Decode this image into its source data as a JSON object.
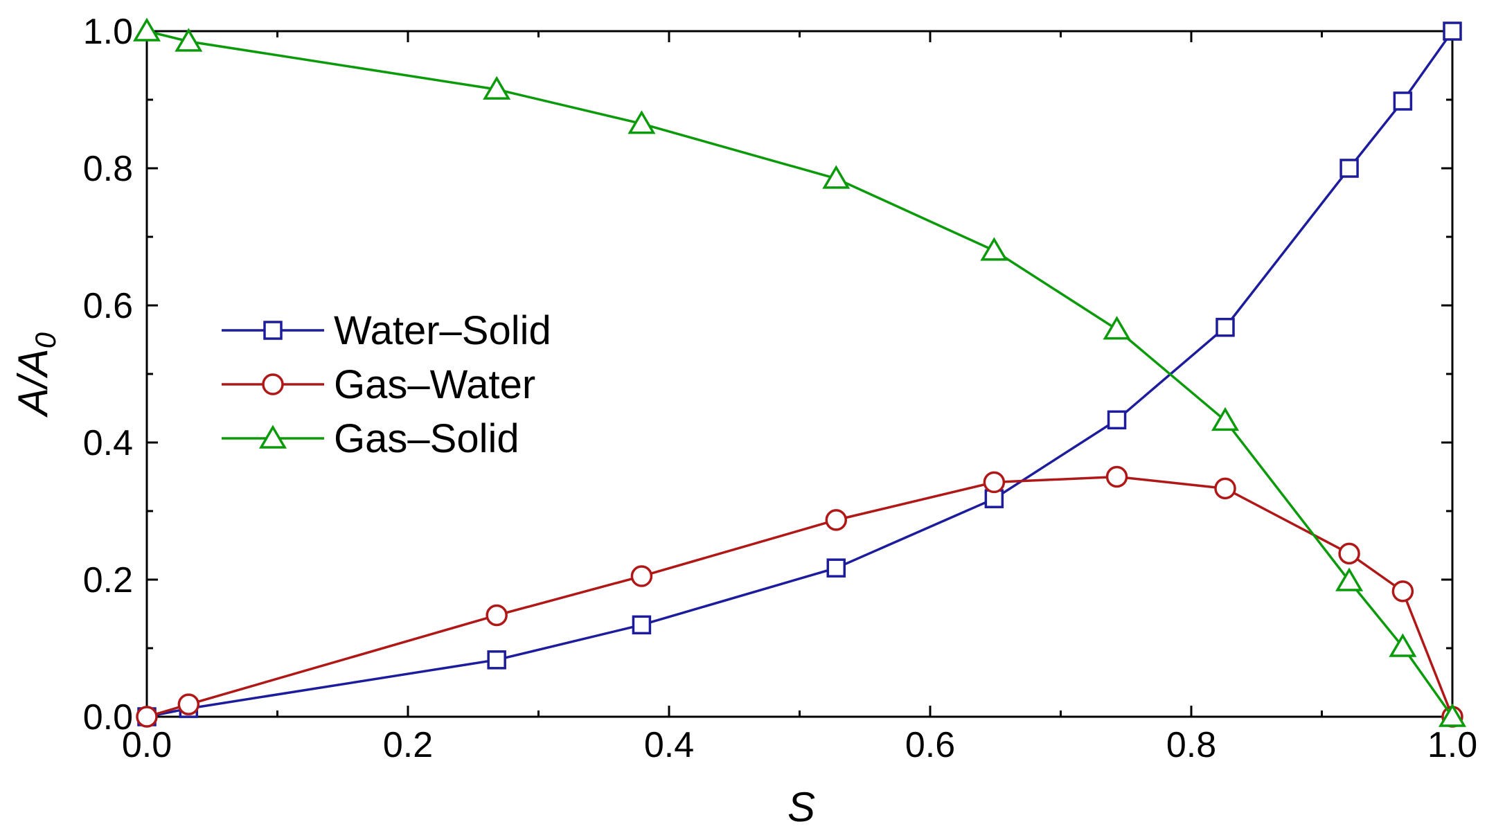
{
  "chart_data": {
    "type": "line",
    "title": "",
    "xlabel": "S",
    "ylabel": {
      "main": "A/A",
      "sub": "0"
    },
    "xlim": [
      0.0,
      1.0
    ],
    "ylim": [
      0.0,
      1.0
    ],
    "xticks": [
      0.0,
      0.2,
      0.4,
      0.6,
      0.8,
      1.0
    ],
    "yticks": [
      0.0,
      0.2,
      0.4,
      0.6,
      0.8,
      1.0
    ],
    "xtick_labels": [
      "0.0",
      "0.2",
      "0.4",
      "0.6",
      "0.8",
      "1.0"
    ],
    "ytick_labels": [
      "0.0",
      "0.2",
      "0.4",
      "0.6",
      "0.8",
      "1.0"
    ],
    "grid": false,
    "legend_position": "center-left",
    "x": [
      0.0,
      0.032,
      0.268,
      0.379,
      0.528,
      0.649,
      0.743,
      0.826,
      0.921,
      0.962,
      1.0
    ],
    "series": [
      {
        "name": "Water–Solid",
        "color": "#1c1c9c",
        "marker": "square",
        "values": [
          0.0,
          0.012,
          0.083,
          0.134,
          0.217,
          0.318,
          0.433,
          0.568,
          0.8,
          0.898,
          1.0
        ]
      },
      {
        "name": "Gas–Water",
        "color": "#b01818",
        "marker": "circle",
        "values": [
          0.0,
          0.018,
          0.148,
          0.205,
          0.287,
          0.342,
          0.35,
          0.333,
          0.238,
          0.183,
          0.0
        ]
      },
      {
        "name": "Gas–Solid",
        "color": "#0a9a0a",
        "marker": "triangle",
        "values": [
          1.0,
          0.985,
          0.915,
          0.865,
          0.785,
          0.68,
          0.565,
          0.432,
          0.198,
          0.102,
          0.0
        ]
      }
    ]
  }
}
